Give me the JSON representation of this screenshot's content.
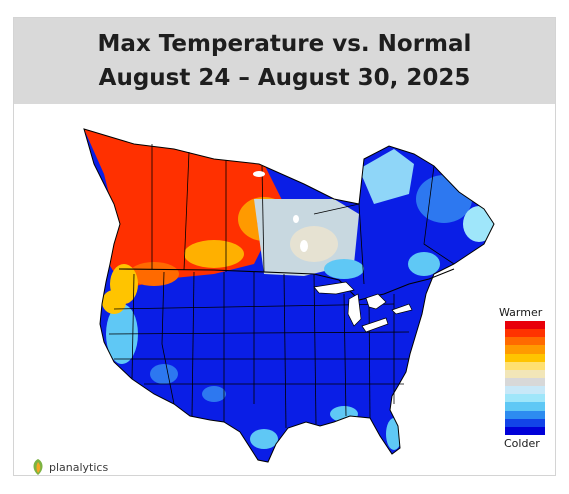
{
  "header": {
    "title_line1": "Max Temperature vs. Normal",
    "title_line2": "August 24 – August 30, 2025"
  },
  "legend": {
    "warm_label": "Warmer",
    "cold_label": "Colder",
    "colors": [
      "#e8000a",
      "#ff3300",
      "#ff6a00",
      "#ff9a00",
      "#ffc400",
      "#ffe070",
      "#f2e6b8",
      "#d8d8d8",
      "#c8e8f8",
      "#9fe6fa",
      "#5fc8f5",
      "#2d8cf0",
      "#1244e8",
      "#0000d8"
    ]
  },
  "brand": {
    "name": "planalytics"
  },
  "map_colors": {
    "cold": "#0a1ee6",
    "medium_cold": "#2d78f0",
    "light_cold": "#8fd6f8",
    "neutral": "#c8d8e0",
    "warm": "#ffb000",
    "hot": "#ff3000",
    "borders": "#000000"
  }
}
